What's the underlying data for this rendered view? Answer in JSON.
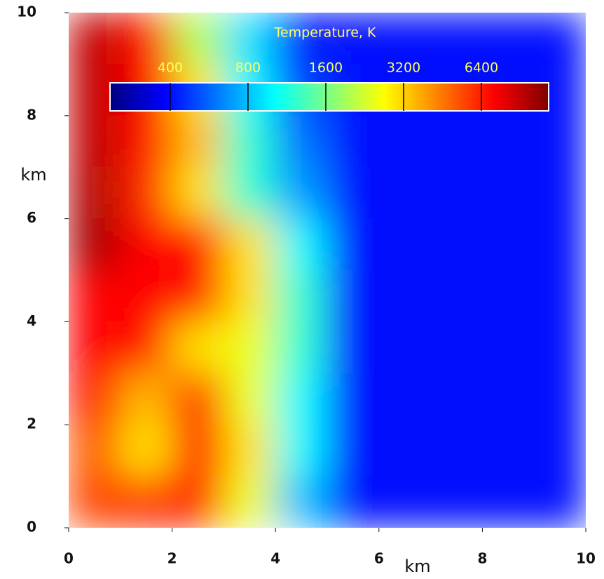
{
  "chart_data": {
    "type": "heatmap",
    "xlabel": "km",
    "ylabel": "km",
    "xlim": [
      0,
      10
    ],
    "ylim": [
      0,
      10
    ],
    "xticks": [
      0,
      2,
      4,
      6,
      8,
      10
    ],
    "yticks": [
      0,
      2,
      4,
      6,
      8,
      10
    ],
    "x": [
      0.5,
      1.5,
      2.5,
      3.5,
      4.5,
      5.5,
      6.5,
      7.5,
      8.5,
      9.5
    ],
    "y": [
      9.5,
      8.5,
      7.5,
      6.5,
      5.5,
      4.5,
      3.5,
      2.5,
      1.5,
      0.5
    ],
    "z": [
      [
        9000,
        6500,
        2000,
        900,
        400,
        400,
        400,
        400,
        400,
        400
      ],
      [
        9000,
        7000,
        3000,
        1000,
        500,
        400,
        400,
        400,
        400,
        400
      ],
      [
        9000,
        6500,
        3500,
        1200,
        600,
        400,
        400,
        400,
        400,
        400
      ],
      [
        9500,
        6000,
        3000,
        1200,
        700,
        400,
        400,
        400,
        400,
        400
      ],
      [
        10000,
        7000,
        7000,
        3000,
        1000,
        400,
        400,
        400,
        400,
        400
      ],
      [
        7000,
        7000,
        6500,
        3000,
        1200,
        400,
        400,
        400,
        400,
        400
      ],
      [
        7000,
        6500,
        3000,
        2500,
        1200,
        400,
        400,
        400,
        400,
        400
      ],
      [
        6500,
        3500,
        6000,
        2500,
        1000,
        400,
        400,
        400,
        400,
        400
      ],
      [
        5000,
        3000,
        6500,
        3000,
        1000,
        400,
        400,
        400,
        400,
        400
      ],
      [
        5500,
        6000,
        6000,
        2500,
        800,
        400,
        400,
        400,
        400,
        400
      ]
    ],
    "colormap": [
      "#00007f",
      "#0000ff",
      "#007fff",
      "#00ffff",
      "#7fff7f",
      "#ffff00",
      "#ff7f00",
      "#ff0000",
      "#7f0000"
    ],
    "colorbar": {
      "label": "Temperature, K",
      "scale": "log",
      "lim": [
        234,
        11650
      ],
      "ticks": [
        400,
        800,
        1600,
        3200,
        6400
      ]
    }
  }
}
